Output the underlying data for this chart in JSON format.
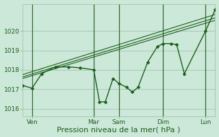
{
  "background_color": "#cce8d8",
  "plot_bg_color": "#cce8d8",
  "grid_color": "#99bbaa",
  "line_color": "#1a5c1a",
  "dark_vline_color": "#336633",
  "xlabel": "Pression niveau de la mer( hPa )",
  "xlim": [
    0,
    100
  ],
  "ylim": [
    1015.6,
    1021.4
  ],
  "yticks": [
    1016,
    1017,
    1018,
    1019,
    1020
  ],
  "xtick_positions": [
    5,
    37,
    50,
    73,
    95
  ],
  "xtick_labels": [
    "Ven",
    "Mar",
    "Sam",
    "Dim",
    "Lun"
  ],
  "vline_positions": [
    5,
    37,
    50,
    73,
    95
  ],
  "trend_line1": {
    "x": [
      0,
      100
    ],
    "y": [
      1017.55,
      1020.55
    ]
  },
  "trend_line2": {
    "x": [
      0,
      100
    ],
    "y": [
      1017.75,
      1020.85
    ]
  },
  "trend_line3": {
    "x": [
      0,
      100
    ],
    "y": [
      1017.63,
      1020.68
    ]
  },
  "main_line_x": [
    0,
    5,
    10,
    17,
    24,
    30,
    37,
    40,
    43,
    47,
    50,
    54,
    57,
    60,
    65,
    70,
    73,
    77,
    80,
    84,
    95,
    100
  ],
  "main_line_y": [
    1017.2,
    1017.05,
    1017.8,
    1018.15,
    1018.15,
    1018.1,
    1018.0,
    1016.35,
    1016.35,
    1017.55,
    1017.3,
    1017.1,
    1016.85,
    1017.1,
    1018.4,
    1019.2,
    1019.35,
    1019.35,
    1019.3,
    1017.8,
    1020.0,
    1021.1
  ],
  "marker_size": 2.5,
  "line_width": 1.0,
  "trend_lw": 0.8,
  "xlabel_fontsize": 8,
  "tick_fontsize": 6.5
}
